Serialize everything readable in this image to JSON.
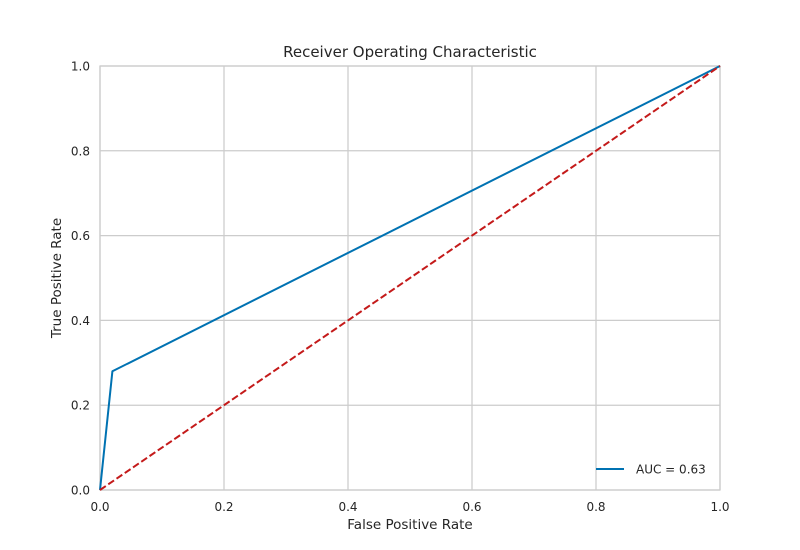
{
  "chart_data": {
    "type": "line",
    "title": "Receiver Operating Characteristic",
    "xlabel": "False Positive Rate",
    "ylabel": "True Positive Rate",
    "xlim": [
      0.0,
      1.0
    ],
    "ylim": [
      0.0,
      1.0
    ],
    "xticks": [
      "0.0",
      "0.2",
      "0.4",
      "0.6",
      "0.8",
      "1.0"
    ],
    "yticks": [
      "0.0",
      "0.2",
      "0.4",
      "0.6",
      "0.8",
      "1.0"
    ],
    "grid": true,
    "legend_position": "bottom-right",
    "series": [
      {
        "name": "AUC = 0.63",
        "color": "#0072b2",
        "dash": "solid",
        "x": [
          0.0,
          0.02,
          1.0
        ],
        "y": [
          0.0,
          0.28,
          1.0
        ]
      },
      {
        "color": "#c41a1a",
        "dash": "dashed",
        "x": [
          0.0,
          1.0
        ],
        "y": [
          0.0,
          1.0
        ]
      }
    ],
    "colors": {
      "background": "#ffffff",
      "grid": "#cccccc",
      "text": "#262626"
    }
  }
}
